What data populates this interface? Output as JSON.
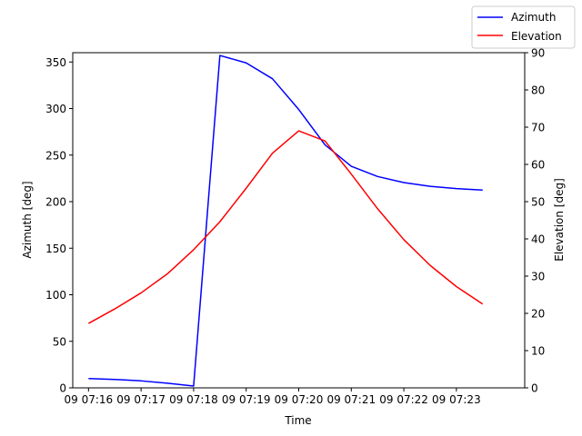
{
  "chart_data": {
    "type": "line",
    "xlabel": "Time",
    "ylabel_left": "Azimuth [deg]",
    "ylabel_right": "Elevation [deg]",
    "x_tick_labels": [
      "09 07:16",
      "09 07:17",
      "09 07:18",
      "09 07:19",
      "09 07:20",
      "09 07:21",
      "09 07:22",
      "09 07:23"
    ],
    "x_ticks_minutes": [
      16,
      17,
      18,
      19,
      20,
      21,
      22,
      23
    ],
    "xlim_minutes": [
      15.7,
      24.3
    ],
    "left_axis": {
      "ylim": [
        0,
        360
      ],
      "ticks": [
        0,
        50,
        100,
        150,
        200,
        250,
        300,
        350
      ]
    },
    "right_axis": {
      "ylim": [
        0,
        90
      ],
      "ticks": [
        0,
        10,
        20,
        30,
        40,
        50,
        60,
        70,
        80,
        90
      ]
    },
    "legend": {
      "placement": "top-right"
    },
    "series": [
      {
        "name": "Azimuth",
        "axis": "left",
        "color": "#0000ff",
        "x_minutes": [
          16.0,
          16.5,
          17.0,
          17.5,
          18.0,
          18.5,
          19.0,
          19.5,
          20.0,
          20.5,
          21.0,
          21.5,
          22.0,
          22.5,
          23.0,
          23.5
        ],
        "values": [
          10,
          9,
          7.5,
          5,
          2,
          357,
          349,
          332,
          299,
          261,
          238,
          227,
          220.5,
          216.5,
          214,
          212.5
        ]
      },
      {
        "name": "Elevation",
        "axis": "right",
        "color": "#ff0000",
        "x_minutes": [
          16.0,
          16.5,
          17.0,
          17.5,
          18.0,
          18.5,
          19.0,
          19.5,
          20.0,
          20.5,
          21.0,
          21.5,
          22.0,
          22.5,
          23.0,
          23.5
        ],
        "values": [
          17.3,
          21.2,
          25.5,
          30.6,
          37.1,
          44.6,
          53.6,
          63.0,
          69.0,
          66.3,
          57.4,
          48.1,
          39.8,
          32.9,
          27.2,
          22.5
        ]
      }
    ]
  }
}
